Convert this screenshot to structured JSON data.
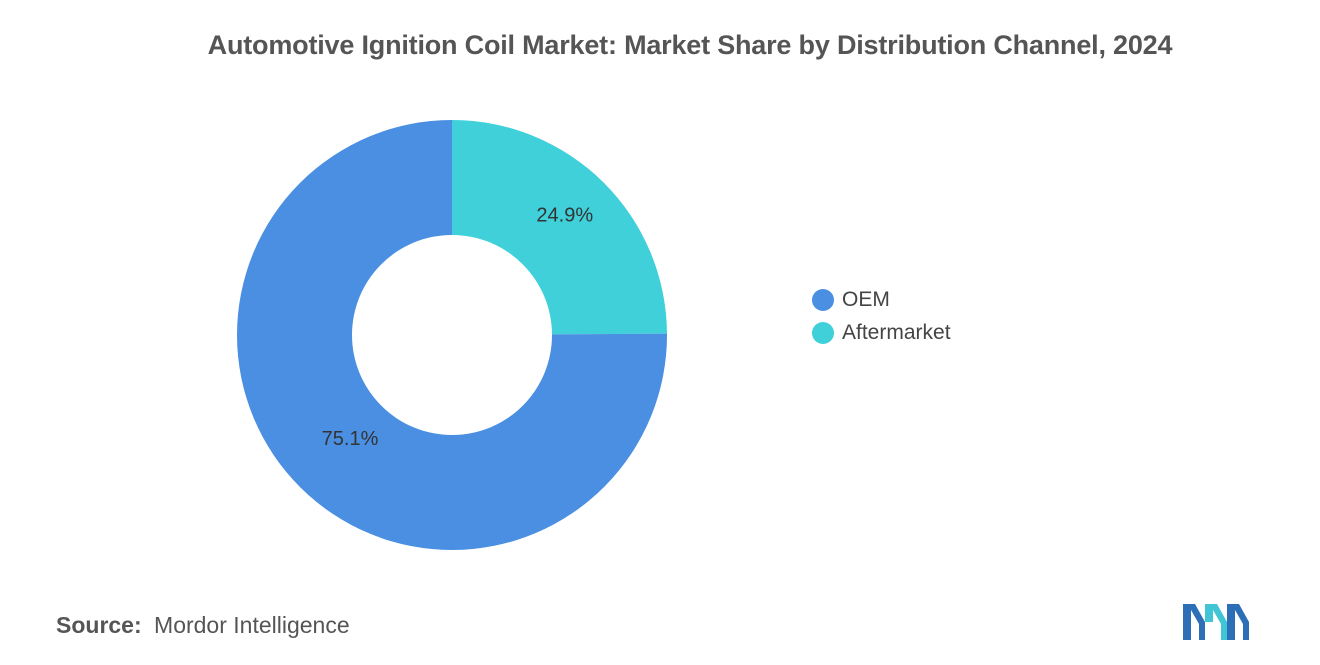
{
  "chart_data": {
    "type": "pie",
    "style": "donut",
    "title": "Automotive Ignition Coil Market: Market Share by Distribution Channel, 2024",
    "categories": [
      "OEM",
      "Aftermarket"
    ],
    "values": [
      75.1,
      24.9
    ],
    "data_labels": [
      "75.1%",
      "24.9%"
    ],
    "colors": [
      "#4a8fe2",
      "#3fd0da"
    ],
    "legend_position": "right"
  },
  "source": {
    "label": "Source:",
    "value": "Mordor Intelligence"
  }
}
